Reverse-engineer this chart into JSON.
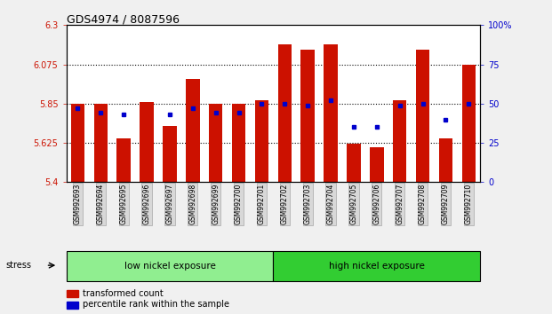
{
  "title": "GDS4974 / 8087596",
  "samples": [
    "GSM992693",
    "GSM992694",
    "GSM992695",
    "GSM992696",
    "GSM992697",
    "GSM992698",
    "GSM992699",
    "GSM992700",
    "GSM992701",
    "GSM992702",
    "GSM992703",
    "GSM992704",
    "GSM992705",
    "GSM992706",
    "GSM992707",
    "GSM992708",
    "GSM992709",
    "GSM992710"
  ],
  "transformed_counts": [
    5.85,
    5.85,
    5.65,
    5.86,
    5.72,
    5.99,
    5.85,
    5.85,
    5.87,
    6.19,
    6.16,
    6.19,
    5.62,
    5.6,
    5.87,
    6.16,
    5.65,
    6.075
  ],
  "percentile_ranks": [
    47,
    44,
    43,
    null,
    43,
    47,
    44,
    44,
    50,
    50,
    49,
    52,
    35,
    35,
    49,
    50,
    40,
    50
  ],
  "groups": [
    {
      "label": "low nickel exposure",
      "start": 0,
      "end": 9,
      "color": "#90ee90"
    },
    {
      "label": "high nickel exposure",
      "start": 9,
      "end": 18,
      "color": "#32cd32"
    }
  ],
  "bar_color": "#cc1100",
  "dot_color": "#0000cc",
  "ylim_left": [
    5.4,
    6.3
  ],
  "ylim_right": [
    0,
    100
  ],
  "yticks_left": [
    5.4,
    5.625,
    5.85,
    6.075,
    6.3
  ],
  "yticks_right": [
    0,
    25,
    50,
    75,
    100
  ],
  "ytick_labels_left": [
    "5.4",
    "5.625",
    "5.85",
    "6.075",
    "6.3"
  ],
  "ytick_labels_right": [
    "0",
    "25",
    "50",
    "75",
    "100%"
  ],
  "hlines": [
    5.625,
    5.85,
    6.075
  ],
  "bar_width": 0.6,
  "background_color": "#f0f0f0",
  "plot_bg_color": "#ffffff",
  "legend_items": [
    {
      "label": "transformed count",
      "color": "#cc1100"
    },
    {
      "label": "percentile rank within the sample",
      "color": "#0000cc"
    }
  ]
}
